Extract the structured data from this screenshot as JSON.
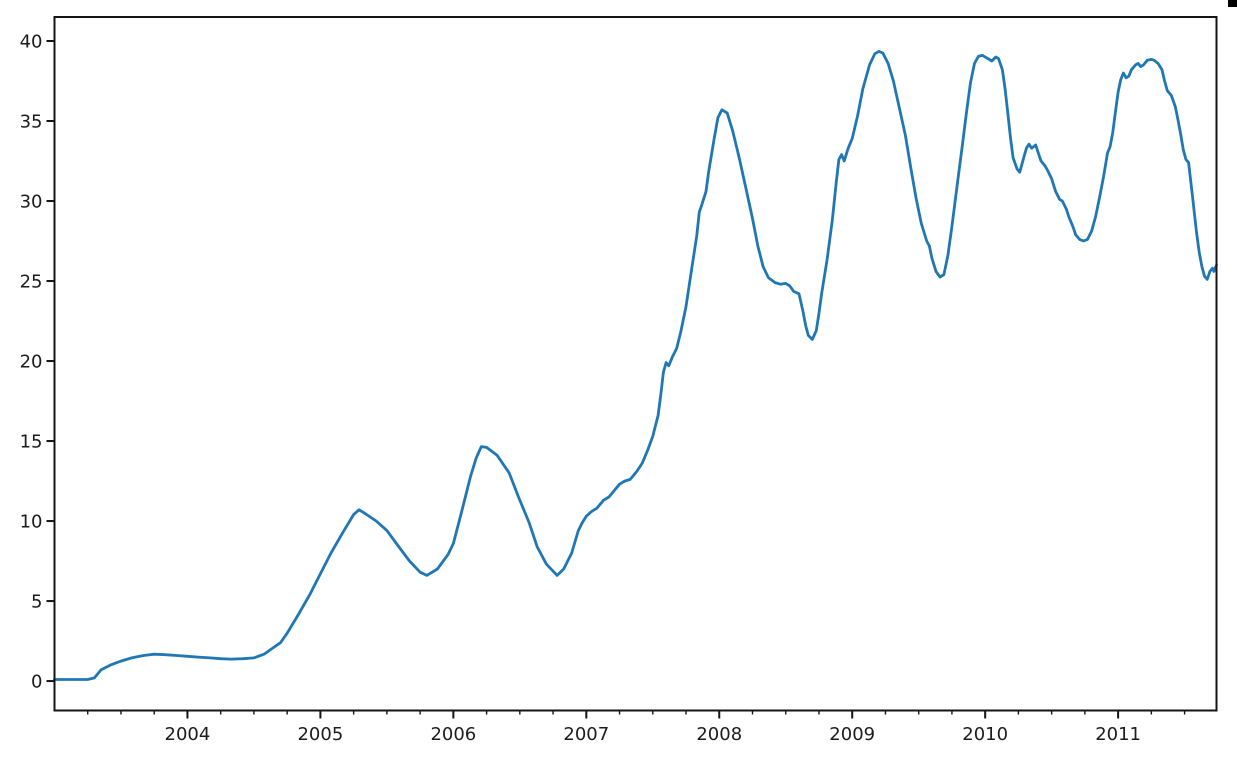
{
  "figure": {
    "background": "#ffffff",
    "spine_color": "#141414",
    "tick_color": "#141414",
    "label_color": "#1c1c1c",
    "corner_mark_color": "#000000"
  },
  "chart_data": {
    "type": "line",
    "title": "",
    "xlabel": "",
    "ylabel": "",
    "grid": false,
    "legend": null,
    "xlim": [
      2003.0,
      2011.74
    ],
    "ylim": [
      -1.84,
      41.5
    ],
    "x_major_ticks": [
      2004,
      2005,
      2006,
      2007,
      2008,
      2009,
      2010,
      2011
    ],
    "x_tick_labels": [
      "2004",
      "2005",
      "2006",
      "2007",
      "2008",
      "2009",
      "2010",
      "2011"
    ],
    "x_minor_tick_step": 0.25,
    "y_major_ticks": [
      0,
      5,
      10,
      15,
      20,
      25,
      30,
      35,
      40
    ],
    "y_tick_labels": [
      "0",
      "5",
      "10",
      "15",
      "20",
      "25",
      "30",
      "35",
      "40"
    ],
    "series": [
      {
        "name": "series-1",
        "color": "#1f77b4",
        "line_width": 2.8,
        "points": [
          [
            2003.0,
            0.1
          ],
          [
            2003.08,
            0.1
          ],
          [
            2003.17,
            0.1
          ],
          [
            2003.25,
            0.1
          ],
          [
            2003.3,
            0.2
          ],
          [
            2003.35,
            0.7
          ],
          [
            2003.42,
            1.0
          ],
          [
            2003.5,
            1.25
          ],
          [
            2003.58,
            1.45
          ],
          [
            2003.67,
            1.6
          ],
          [
            2003.75,
            1.68
          ],
          [
            2003.83,
            1.65
          ],
          [
            2003.92,
            1.6
          ],
          [
            2004.0,
            1.55
          ],
          [
            2004.08,
            1.5
          ],
          [
            2004.17,
            1.45
          ],
          [
            2004.25,
            1.4
          ],
          [
            2004.33,
            1.37
          ],
          [
            2004.42,
            1.4
          ],
          [
            2004.5,
            1.45
          ],
          [
            2004.58,
            1.7
          ],
          [
            2004.63,
            2.0
          ],
          [
            2004.7,
            2.4
          ],
          [
            2004.75,
            3.0
          ],
          [
            2004.83,
            4.1
          ],
          [
            2004.92,
            5.4
          ],
          [
            2005.0,
            6.7
          ],
          [
            2005.08,
            8.0
          ],
          [
            2005.17,
            9.3
          ],
          [
            2005.25,
            10.4
          ],
          [
            2005.29,
            10.7
          ],
          [
            2005.33,
            10.5
          ],
          [
            2005.42,
            10.0
          ],
          [
            2005.5,
            9.4
          ],
          [
            2005.58,
            8.5
          ],
          [
            2005.67,
            7.5
          ],
          [
            2005.75,
            6.8
          ],
          [
            2005.8,
            6.6
          ],
          [
            2005.88,
            7.0
          ],
          [
            2005.96,
            7.9
          ],
          [
            2006.0,
            8.6
          ],
          [
            2006.06,
            10.5
          ],
          [
            2006.13,
            12.8
          ],
          [
            2006.17,
            13.9
          ],
          [
            2006.21,
            14.65
          ],
          [
            2006.25,
            14.6
          ],
          [
            2006.33,
            14.1
          ],
          [
            2006.42,
            13.0
          ],
          [
            2006.49,
            11.5
          ],
          [
            2006.57,
            9.9
          ],
          [
            2006.63,
            8.4
          ],
          [
            2006.7,
            7.3
          ],
          [
            2006.78,
            6.6
          ],
          [
            2006.83,
            7.0
          ],
          [
            2006.89,
            8.0
          ],
          [
            2006.94,
            9.4
          ],
          [
            2006.97,
            9.9
          ],
          [
            2007.0,
            10.3
          ],
          [
            2007.04,
            10.6
          ],
          [
            2007.08,
            10.8
          ],
          [
            2007.13,
            11.3
          ],
          [
            2007.17,
            11.5
          ],
          [
            2007.21,
            11.9
          ],
          [
            2007.25,
            12.3
          ],
          [
            2007.29,
            12.5
          ],
          [
            2007.33,
            12.6
          ],
          [
            2007.38,
            13.1
          ],
          [
            2007.42,
            13.6
          ],
          [
            2007.46,
            14.4
          ],
          [
            2007.5,
            15.3
          ],
          [
            2007.54,
            16.6
          ],
          [
            2007.56,
            17.9
          ],
          [
            2007.58,
            19.3
          ],
          [
            2007.6,
            19.9
          ],
          [
            2007.62,
            19.7
          ],
          [
            2007.65,
            20.3
          ],
          [
            2007.68,
            20.8
          ],
          [
            2007.71,
            21.8
          ],
          [
            2007.75,
            23.4
          ],
          [
            2007.79,
            25.6
          ],
          [
            2007.83,
            27.8
          ],
          [
            2007.85,
            29.3
          ],
          [
            2007.87,
            29.8
          ],
          [
            2007.9,
            30.6
          ],
          [
            2007.92,
            31.8
          ],
          [
            2007.96,
            33.8
          ],
          [
            2007.99,
            35.2
          ],
          [
            2008.02,
            35.7
          ],
          [
            2008.06,
            35.5
          ],
          [
            2008.1,
            34.4
          ],
          [
            2008.15,
            32.7
          ],
          [
            2008.2,
            30.8
          ],
          [
            2008.25,
            28.9
          ],
          [
            2008.29,
            27.2
          ],
          [
            2008.33,
            25.9
          ],
          [
            2008.37,
            25.2
          ],
          [
            2008.42,
            24.9
          ],
          [
            2008.46,
            24.8
          ],
          [
            2008.5,
            24.85
          ],
          [
            2008.53,
            24.7
          ],
          [
            2008.56,
            24.35
          ],
          [
            2008.6,
            24.2
          ],
          [
            2008.63,
            23.1
          ],
          [
            2008.65,
            22.2
          ],
          [
            2008.67,
            21.6
          ],
          [
            2008.7,
            21.35
          ],
          [
            2008.73,
            21.9
          ],
          [
            2008.75,
            23.0
          ],
          [
            2008.77,
            24.2
          ],
          [
            2008.81,
            26.3
          ],
          [
            2008.85,
            28.8
          ],
          [
            2008.88,
            31.2
          ],
          [
            2008.9,
            32.6
          ],
          [
            2008.92,
            32.9
          ],
          [
            2008.94,
            32.5
          ],
          [
            2008.97,
            33.3
          ],
          [
            2009.0,
            33.9
          ],
          [
            2009.04,
            35.3
          ],
          [
            2009.08,
            37.0
          ],
          [
            2009.13,
            38.5
          ],
          [
            2009.17,
            39.2
          ],
          [
            2009.2,
            39.35
          ],
          [
            2009.23,
            39.25
          ],
          [
            2009.27,
            38.6
          ],
          [
            2009.31,
            37.5
          ],
          [
            2009.35,
            36.0
          ],
          [
            2009.4,
            34.1
          ],
          [
            2009.44,
            32.1
          ],
          [
            2009.48,
            30.2
          ],
          [
            2009.52,
            28.6
          ],
          [
            2009.56,
            27.5
          ],
          [
            2009.58,
            27.2
          ],
          [
            2009.6,
            26.4
          ],
          [
            2009.63,
            25.6
          ],
          [
            2009.66,
            25.25
          ],
          [
            2009.69,
            25.4
          ],
          [
            2009.72,
            26.6
          ],
          [
            2009.75,
            28.4
          ],
          [
            2009.79,
            31.0
          ],
          [
            2009.83,
            33.6
          ],
          [
            2009.86,
            35.6
          ],
          [
            2009.89,
            37.4
          ],
          [
            2009.92,
            38.6
          ],
          [
            2009.95,
            39.05
          ],
          [
            2009.98,
            39.1
          ],
          [
            2010.02,
            38.9
          ],
          [
            2010.05,
            38.75
          ],
          [
            2010.08,
            39.0
          ],
          [
            2010.1,
            38.9
          ],
          [
            2010.13,
            38.2
          ],
          [
            2010.15,
            37.0
          ],
          [
            2010.17,
            35.5
          ],
          [
            2010.19,
            34.0
          ],
          [
            2010.21,
            32.7
          ],
          [
            2010.24,
            32.0
          ],
          [
            2010.26,
            31.8
          ],
          [
            2010.29,
            32.7
          ],
          [
            2010.31,
            33.3
          ],
          [
            2010.33,
            33.55
          ],
          [
            2010.35,
            33.3
          ],
          [
            2010.38,
            33.5
          ],
          [
            2010.4,
            33.0
          ],
          [
            2010.42,
            32.5
          ],
          [
            2010.45,
            32.2
          ],
          [
            2010.47,
            31.9
          ],
          [
            2010.5,
            31.4
          ],
          [
            2010.53,
            30.6
          ],
          [
            2010.56,
            30.1
          ],
          [
            2010.58,
            30.0
          ],
          [
            2010.61,
            29.5
          ],
          [
            2010.63,
            29.0
          ],
          [
            2010.66,
            28.4
          ],
          [
            2010.68,
            27.9
          ],
          [
            2010.71,
            27.6
          ],
          [
            2010.74,
            27.5
          ],
          [
            2010.77,
            27.6
          ],
          [
            2010.8,
            28.1
          ],
          [
            2010.83,
            29.0
          ],
          [
            2010.86,
            30.2
          ],
          [
            2010.89,
            31.5
          ],
          [
            2010.92,
            33.0
          ],
          [
            2010.94,
            33.4
          ],
          [
            2010.96,
            34.3
          ],
          [
            2010.98,
            35.6
          ],
          [
            2011.0,
            36.8
          ],
          [
            2011.02,
            37.6
          ],
          [
            2011.04,
            38.0
          ],
          [
            2011.06,
            37.7
          ],
          [
            2011.08,
            37.8
          ],
          [
            2011.1,
            38.2
          ],
          [
            2011.13,
            38.5
          ],
          [
            2011.15,
            38.6
          ],
          [
            2011.17,
            38.4
          ],
          [
            2011.19,
            38.5
          ],
          [
            2011.22,
            38.8
          ],
          [
            2011.25,
            38.85
          ],
          [
            2011.27,
            38.8
          ],
          [
            2011.3,
            38.6
          ],
          [
            2011.33,
            38.2
          ],
          [
            2011.35,
            37.5
          ],
          [
            2011.37,
            36.9
          ],
          [
            2011.4,
            36.6
          ],
          [
            2011.43,
            35.9
          ],
          [
            2011.45,
            35.1
          ],
          [
            2011.47,
            34.2
          ],
          [
            2011.49,
            33.2
          ],
          [
            2011.51,
            32.6
          ],
          [
            2011.53,
            32.4
          ],
          [
            2011.55,
            31.0
          ],
          [
            2011.57,
            29.5
          ],
          [
            2011.59,
            28.0
          ],
          [
            2011.61,
            26.8
          ],
          [
            2011.63,
            25.9
          ],
          [
            2011.65,
            25.3
          ],
          [
            2011.67,
            25.1
          ],
          [
            2011.69,
            25.6
          ],
          [
            2011.71,
            25.8
          ],
          [
            2011.72,
            25.6
          ],
          [
            2011.74,
            26.0
          ]
        ]
      }
    ]
  }
}
